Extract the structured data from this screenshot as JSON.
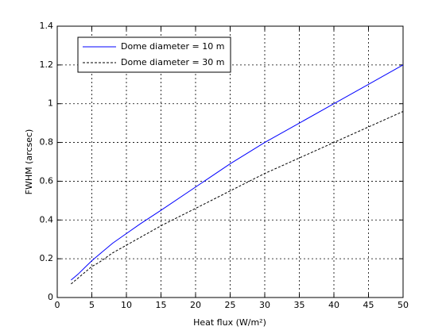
{
  "chart_data": {
    "type": "line",
    "x_label": "Heat flux (W/m²)",
    "y_label": "FWHM (arcsec)",
    "x": [
      2,
      3,
      4,
      5,
      6,
      8,
      10,
      12,
      15,
      20,
      25,
      30,
      35,
      40,
      45,
      50
    ],
    "series": [
      {
        "name": "Dome diameter = 10 m",
        "color": "#0000ff",
        "linestyle": "solid",
        "values": [
          0.09,
          0.12,
          0.155,
          0.19,
          0.22,
          0.28,
          0.33,
          0.38,
          0.45,
          0.57,
          0.69,
          0.8,
          0.9,
          1.0,
          1.1,
          1.2
        ]
      },
      {
        "name": "Dome diameter = 30 m",
        "color": "#000000",
        "linestyle": "dashed",
        "values": [
          0.07,
          0.1,
          0.13,
          0.16,
          0.18,
          0.23,
          0.27,
          0.31,
          0.37,
          0.46,
          0.55,
          0.64,
          0.72,
          0.8,
          0.88,
          0.96
        ]
      }
    ],
    "xlim": [
      0,
      50
    ],
    "xticks": [
      0,
      5,
      10,
      15,
      20,
      25,
      30,
      35,
      40,
      45,
      50
    ],
    "ylim": [
      0,
      1.4
    ],
    "yticks": [
      0,
      0.2,
      0.4,
      0.6,
      0.8,
      1,
      1.2,
      1.4
    ],
    "grid": true,
    "legend": "upper-left"
  }
}
